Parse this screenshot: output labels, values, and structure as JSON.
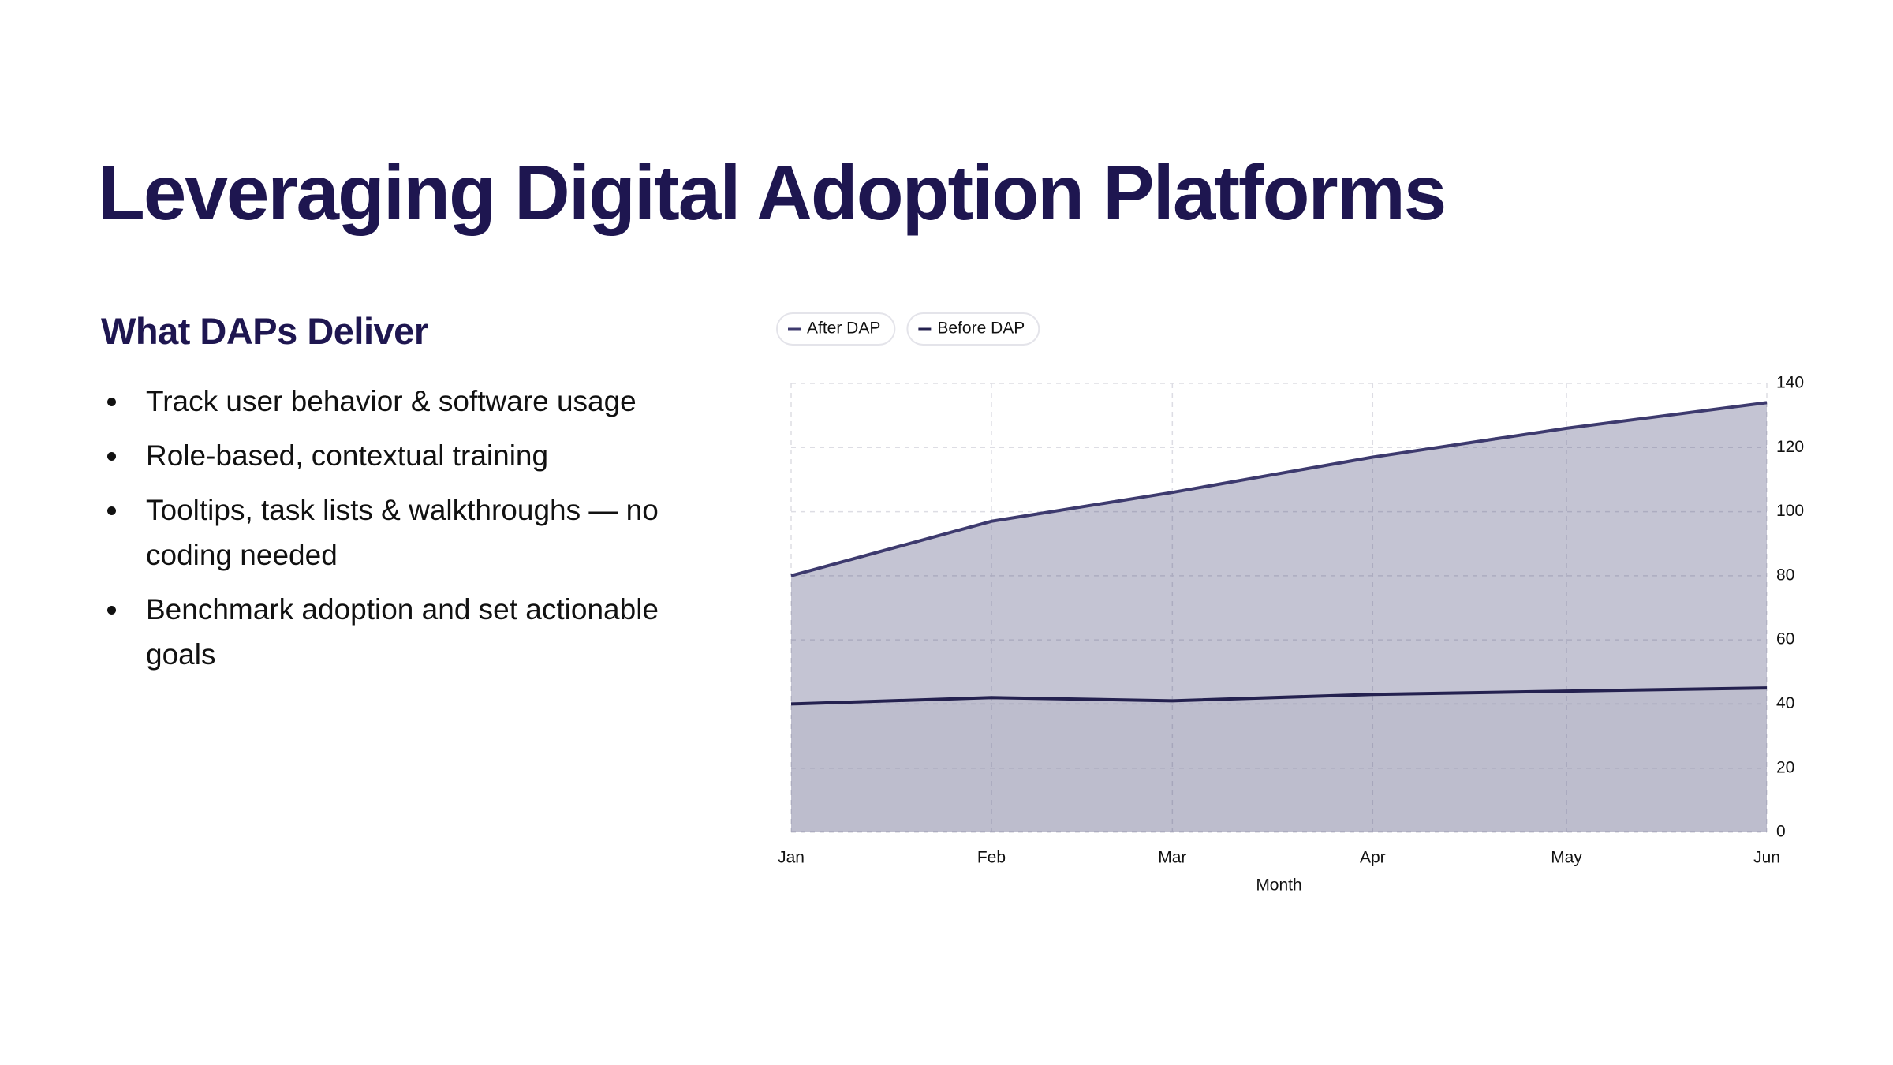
{
  "title": "Leveraging Digital Adoption Platforms",
  "section": {
    "heading": "What DAPs Deliver",
    "bullets": [
      "Track user behavior & software usage",
      "Role-based, contextual training",
      "Tooltips, task lists & walkthroughs — no coding needed",
      "Benchmark adoption and set actionable goals"
    ]
  },
  "chart_data": {
    "type": "area",
    "x_label": "Month",
    "categories": [
      "Jan",
      "Feb",
      "Mar",
      "Apr",
      "May",
      "Jun"
    ],
    "series": [
      {
        "name": "After DAP",
        "color": "#3d3a6e",
        "values": [
          80,
          97,
          106,
          117,
          126,
          134
        ]
      },
      {
        "name": "Before DAP",
        "color": "#24214f",
        "values": [
          40,
          42,
          41,
          43,
          44,
          45
        ]
      }
    ],
    "ylim": [
      0,
      140
    ],
    "yticks": [
      0,
      20,
      40,
      60,
      80,
      100,
      120,
      140
    ],
    "y_axis_side": "right",
    "grid": true,
    "legend": "top-left"
  }
}
